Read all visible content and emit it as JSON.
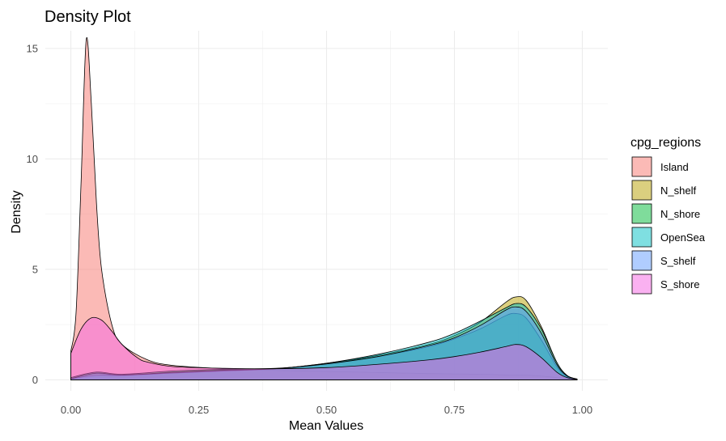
{
  "chart_data": {
    "type": "area",
    "title": "Density Plot",
    "xlabel": "Mean Values",
    "ylabel": "Density",
    "xlim": [
      -0.05,
      1.05
    ],
    "ylim": [
      -0.5,
      15.8
    ],
    "x_ticks": [
      0.0,
      0.25,
      0.5,
      0.75,
      1.0
    ],
    "x_tick_labels": [
      "0.00",
      "0.25",
      "0.50",
      "0.75",
      "1.00"
    ],
    "y_ticks": [
      0,
      5,
      10,
      15
    ],
    "y_tick_labels": [
      "0",
      "5",
      "10",
      "15"
    ],
    "grid": true,
    "legend": {
      "title": "cpg_regions",
      "position": "right"
    },
    "series": [
      {
        "name": "Island",
        "color": "#F8766D",
        "points": [
          [
            0.0,
            1.3
          ],
          [
            0.01,
            3.0
          ],
          [
            0.02,
            9.0
          ],
          [
            0.03,
            15.4
          ],
          [
            0.04,
            12.5
          ],
          [
            0.05,
            8.0
          ],
          [
            0.06,
            5.0
          ],
          [
            0.08,
            2.5
          ],
          [
            0.1,
            1.6
          ],
          [
            0.15,
            0.9
          ],
          [
            0.2,
            0.65
          ],
          [
            0.3,
            0.5
          ],
          [
            0.4,
            0.42
          ],
          [
            0.5,
            0.38
          ],
          [
            0.6,
            0.33
          ],
          [
            0.7,
            0.28
          ],
          [
            0.8,
            0.25
          ],
          [
            0.85,
            0.22
          ],
          [
            0.9,
            0.2
          ],
          [
            0.95,
            0.1
          ],
          [
            0.99,
            0.02
          ]
        ]
      },
      {
        "name": "N_shelf",
        "color": "#B79F00",
        "points": [
          [
            0.0,
            0.05
          ],
          [
            0.05,
            0.28
          ],
          [
            0.1,
            0.2
          ],
          [
            0.2,
            0.35
          ],
          [
            0.3,
            0.45
          ],
          [
            0.4,
            0.5
          ],
          [
            0.5,
            0.75
          ],
          [
            0.6,
            1.1
          ],
          [
            0.7,
            1.6
          ],
          [
            0.75,
            2.0
          ],
          [
            0.8,
            2.6
          ],
          [
            0.85,
            3.5
          ],
          [
            0.87,
            3.75
          ],
          [
            0.89,
            3.6
          ],
          [
            0.92,
            2.4
          ],
          [
            0.95,
            0.8
          ],
          [
            0.97,
            0.2
          ],
          [
            0.99,
            0.03
          ]
        ]
      },
      {
        "name": "N_shore",
        "color": "#00BA38",
        "points": [
          [
            0.0,
            0.1
          ],
          [
            0.05,
            0.35
          ],
          [
            0.1,
            0.25
          ],
          [
            0.2,
            0.4
          ],
          [
            0.3,
            0.48
          ],
          [
            0.4,
            0.52
          ],
          [
            0.5,
            0.72
          ],
          [
            0.6,
            1.05
          ],
          [
            0.7,
            1.5
          ],
          [
            0.75,
            1.85
          ],
          [
            0.8,
            2.3
          ],
          [
            0.85,
            2.9
          ],
          [
            0.87,
            3.0
          ],
          [
            0.89,
            2.8
          ],
          [
            0.92,
            1.8
          ],
          [
            0.95,
            0.6
          ],
          [
            0.97,
            0.15
          ],
          [
            0.99,
            0.03
          ]
        ]
      },
      {
        "name": "OpenSea",
        "color": "#00BFC4",
        "points": [
          [
            0.0,
            0.05
          ],
          [
            0.05,
            0.2
          ],
          [
            0.1,
            0.2
          ],
          [
            0.2,
            0.3
          ],
          [
            0.3,
            0.4
          ],
          [
            0.4,
            0.5
          ],
          [
            0.5,
            0.75
          ],
          [
            0.6,
            1.15
          ],
          [
            0.7,
            1.7
          ],
          [
            0.75,
            2.1
          ],
          [
            0.8,
            2.65
          ],
          [
            0.85,
            3.25
          ],
          [
            0.87,
            3.45
          ],
          [
            0.89,
            3.3
          ],
          [
            0.92,
            2.3
          ],
          [
            0.95,
            0.8
          ],
          [
            0.97,
            0.2
          ],
          [
            0.99,
            0.03
          ]
        ]
      },
      {
        "name": "S_shelf",
        "color": "#619CFF",
        "points": [
          [
            0.0,
            0.05
          ],
          [
            0.05,
            0.3
          ],
          [
            0.1,
            0.22
          ],
          [
            0.2,
            0.33
          ],
          [
            0.3,
            0.43
          ],
          [
            0.4,
            0.5
          ],
          [
            0.5,
            0.72
          ],
          [
            0.6,
            1.05
          ],
          [
            0.7,
            1.55
          ],
          [
            0.75,
            1.9
          ],
          [
            0.8,
            2.45
          ],
          [
            0.85,
            3.15
          ],
          [
            0.87,
            3.3
          ],
          [
            0.89,
            3.1
          ],
          [
            0.92,
            2.1
          ],
          [
            0.95,
            0.7
          ],
          [
            0.97,
            0.18
          ],
          [
            0.99,
            0.03
          ]
        ]
      },
      {
        "name": "S_shore",
        "color": "#F564E3",
        "points": [
          [
            0.0,
            1.2
          ],
          [
            0.02,
            2.3
          ],
          [
            0.04,
            2.8
          ],
          [
            0.06,
            2.7
          ],
          [
            0.08,
            2.2
          ],
          [
            0.1,
            1.6
          ],
          [
            0.13,
            1.0
          ],
          [
            0.15,
            0.8
          ],
          [
            0.2,
            0.6
          ],
          [
            0.3,
            0.52
          ],
          [
            0.4,
            0.5
          ],
          [
            0.5,
            0.55
          ],
          [
            0.6,
            0.7
          ],
          [
            0.7,
            0.9
          ],
          [
            0.75,
            1.05
          ],
          [
            0.8,
            1.25
          ],
          [
            0.85,
            1.5
          ],
          [
            0.87,
            1.6
          ],
          [
            0.89,
            1.5
          ],
          [
            0.92,
            1.0
          ],
          [
            0.95,
            0.35
          ],
          [
            0.97,
            0.1
          ],
          [
            0.99,
            0.02
          ]
        ]
      }
    ]
  }
}
